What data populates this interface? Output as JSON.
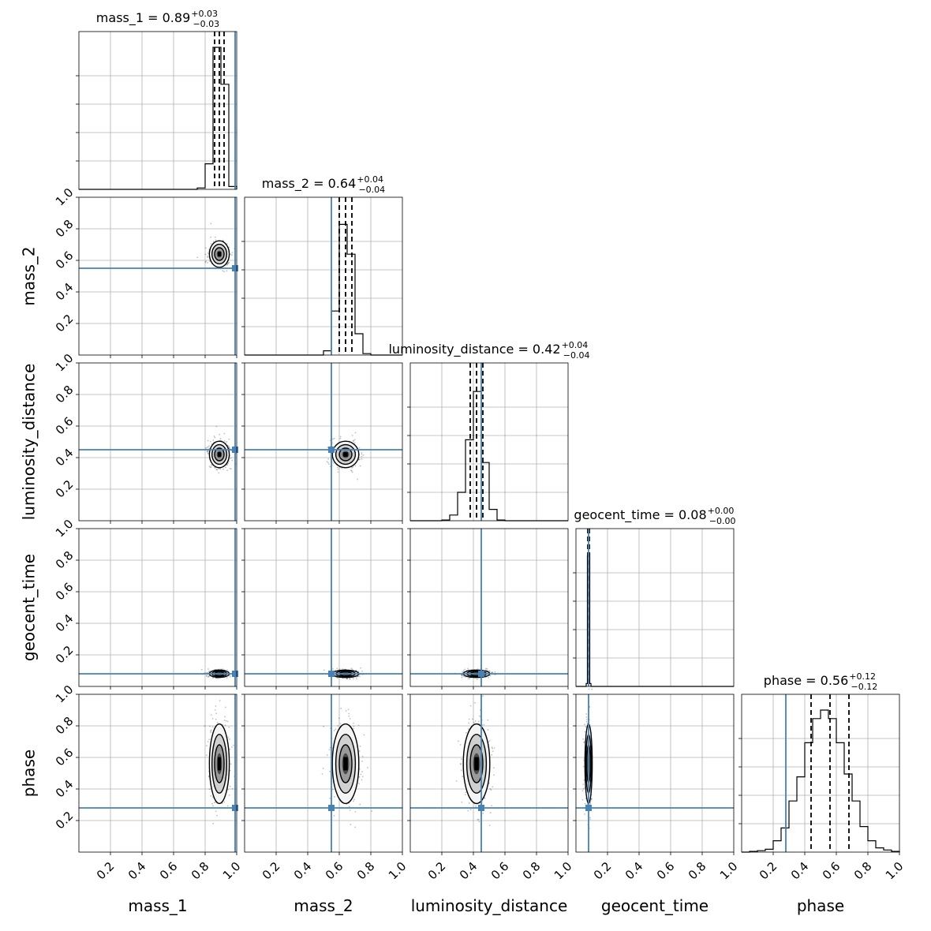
{
  "chart_data": {
    "type": "corner",
    "parameters": [
      "mass_1",
      "mass_2",
      "luminosity_distance",
      "geocent_time",
      "phase"
    ],
    "axis_range": [
      0,
      1
    ],
    "ticks": [
      0.2,
      0.4,
      0.6,
      0.8,
      1.0
    ],
    "tick_labels": [
      "0.2",
      "0.4",
      "0.6",
      "0.8",
      "1.0"
    ],
    "grid": true,
    "truth_color": "#4682b4",
    "truth_values": [
      0.99,
      0.55,
      0.45,
      0.08,
      0.28
    ],
    "medians": [
      0.89,
      0.64,
      0.42,
      0.08,
      0.56
    ],
    "quantile_lines": [
      [
        0.86,
        0.89,
        0.92
      ],
      [
        0.6,
        0.64,
        0.68
      ],
      [
        0.38,
        0.42,
        0.46
      ],
      [
        0.075,
        0.08,
        0.085
      ],
      [
        0.44,
        0.56,
        0.68
      ]
    ],
    "titles": [
      {
        "name": "mass_1",
        "value": "0.89",
        "plus": "+0.03",
        "minus": "−0.03"
      },
      {
        "name": "mass_2",
        "value": "0.64",
        "plus": "+0.04",
        "minus": "−0.04"
      },
      {
        "name": "luminosity_distance",
        "value": "0.42",
        "plus": "+0.04",
        "minus": "−0.04"
      },
      {
        "name": "geocent_time",
        "value": "0.08",
        "plus": "+0.00",
        "minus": "−0.00"
      },
      {
        "name": "phase",
        "value": "0.56",
        "plus": "+0.12",
        "minus": "−0.12"
      }
    ],
    "histograms": [
      {
        "bin_edges": [
          0.75,
          0.8,
          0.85,
          0.9,
          0.95,
          1.0
        ],
        "counts": [
          0.01,
          0.18,
          1.0,
          0.74,
          0.02
        ]
      },
      {
        "bin_edges": [
          0.5,
          0.55,
          0.6,
          0.65,
          0.7,
          0.75,
          0.8
        ],
        "counts": [
          0.03,
          0.31,
          0.92,
          0.71,
          0.15,
          0.01
        ]
      },
      {
        "bin_edges": [
          0.2,
          0.25,
          0.3,
          0.35,
          0.4,
          0.45,
          0.5,
          0.55,
          0.6
        ],
        "counts": [
          0.005,
          0.04,
          0.2,
          0.57,
          0.91,
          0.41,
          0.08,
          0.005
        ]
      },
      {
        "bin_edges": [
          0.065,
          0.0725,
          0.08,
          0.0875,
          0.095
        ],
        "counts": [
          0.02,
          0.92,
          0.94,
          0.02
        ]
      },
      {
        "bin_edges": [
          0.0,
          0.05,
          0.1,
          0.15,
          0.2,
          0.25,
          0.3,
          0.35,
          0.4,
          0.45,
          0.5,
          0.55,
          0.6,
          0.65,
          0.7,
          0.75,
          0.8,
          0.85,
          0.9,
          0.95,
          1.0
        ],
        "counts": [
          0.0,
          0.005,
          0.01,
          0.02,
          0.08,
          0.17,
          0.36,
          0.53,
          0.77,
          0.94,
          1.0,
          0.94,
          0.77,
          0.55,
          0.36,
          0.18,
          0.08,
          0.03,
          0.015,
          0.005
        ]
      }
    ],
    "posterior_2d": {
      "centers": [
        0.89,
        0.64,
        0.42,
        0.08,
        0.56
      ],
      "widths": [
        0.03,
        0.04,
        0.04,
        0.003,
        0.12
      ]
    }
  }
}
